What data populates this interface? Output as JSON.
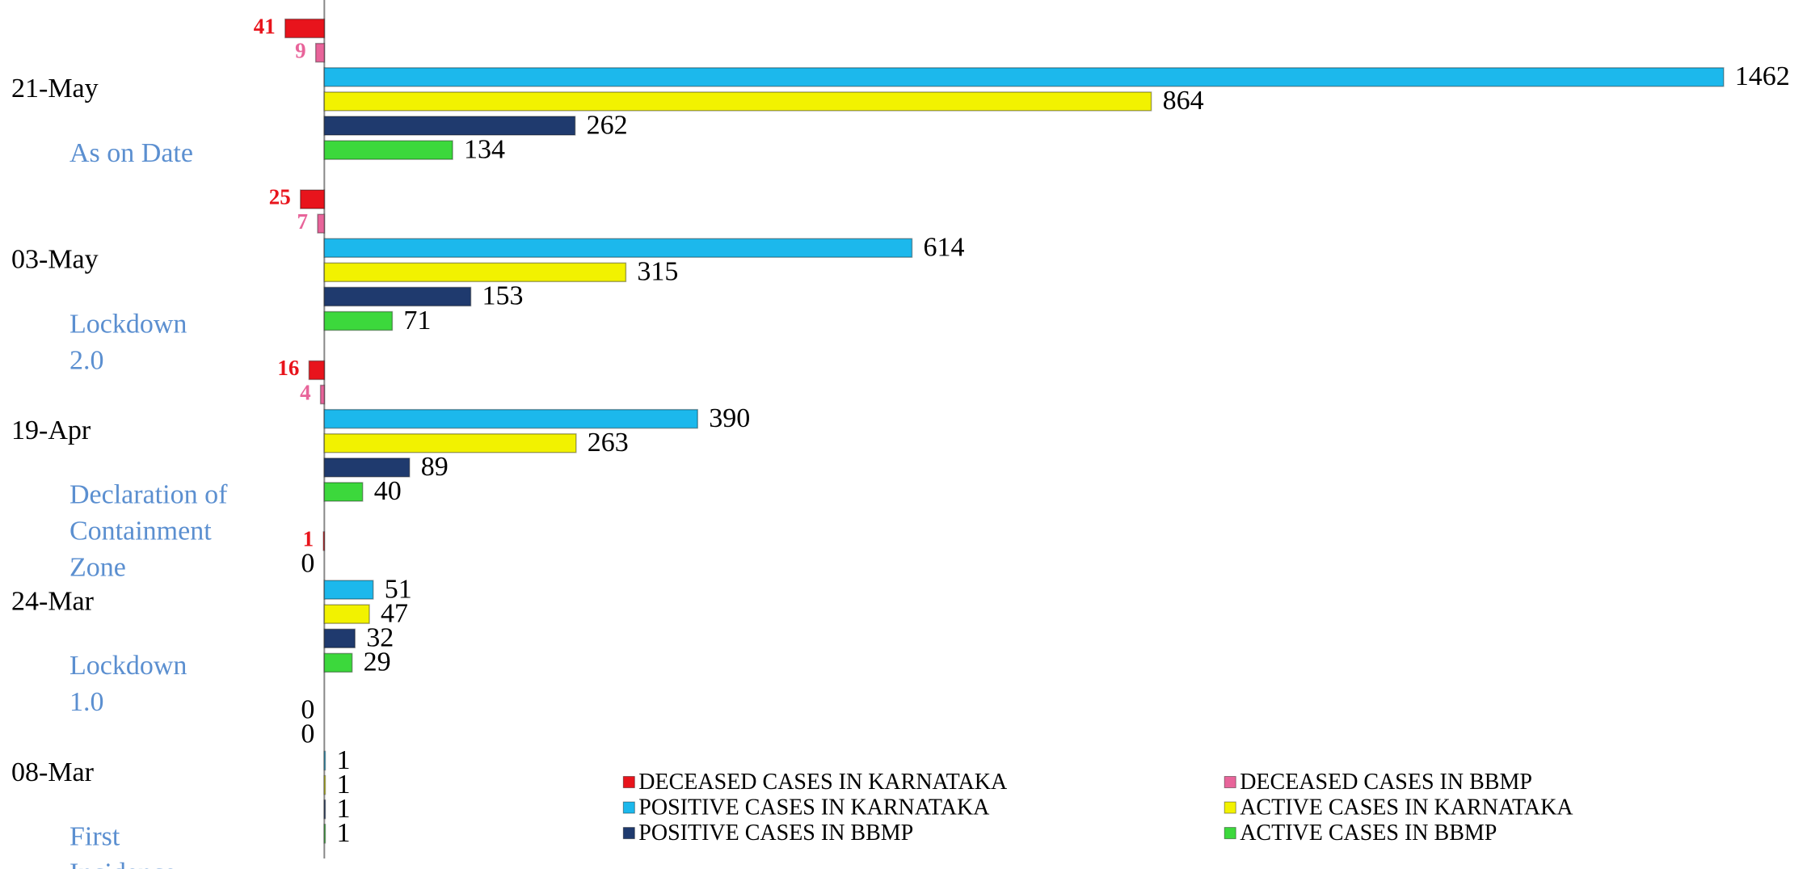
{
  "chart_data": {
    "type": "hbar",
    "categories": [
      "21-May",
      "03-May",
      "19-Apr",
      "24-Mar",
      "08-Mar"
    ],
    "series": [
      {
        "name": "DECEASED CASES IN KARNATAKA",
        "color": "#e8141c",
        "direction": "left",
        "values": [
          41,
          25,
          16,
          1,
          0
        ]
      },
      {
        "name": "DECEASED CASES IN BBMP",
        "color": "#e8649a",
        "direction": "left",
        "values": [
          9,
          7,
          4,
          0,
          0
        ]
      },
      {
        "name": "POSITIVE CASES IN KARNATAKA",
        "color": "#1cb8ec",
        "values": [
          1462,
          614,
          390,
          51,
          1
        ]
      },
      {
        "name": "ACTIVE CASES IN KARNATAKA",
        "color": "#f2f200",
        "values": [
          864,
          315,
          263,
          47,
          1
        ]
      },
      {
        "name": "POSITIVE CASES IN BBMP",
        "color": "#1f3a6e",
        "values": [
          262,
          153,
          89,
          32,
          1
        ]
      },
      {
        "name": "ACTIVE CASES IN BBMP",
        "color": "#3cd83c",
        "values": [
          134,
          71,
          40,
          29,
          1
        ]
      }
    ],
    "annotations": [
      {
        "lines": [
          "As on Date"
        ]
      },
      {
        "lines": [
          "Lockdown",
          "2.0"
        ]
      },
      {
        "lines": [
          "Declaration of",
          "Containment",
          "Zone"
        ]
      },
      {
        "lines": [
          "Lockdown",
          "1.0"
        ]
      },
      {
        "lines": [
          "First",
          "Incidence"
        ]
      }
    ],
    "legend": "bottom-right"
  }
}
